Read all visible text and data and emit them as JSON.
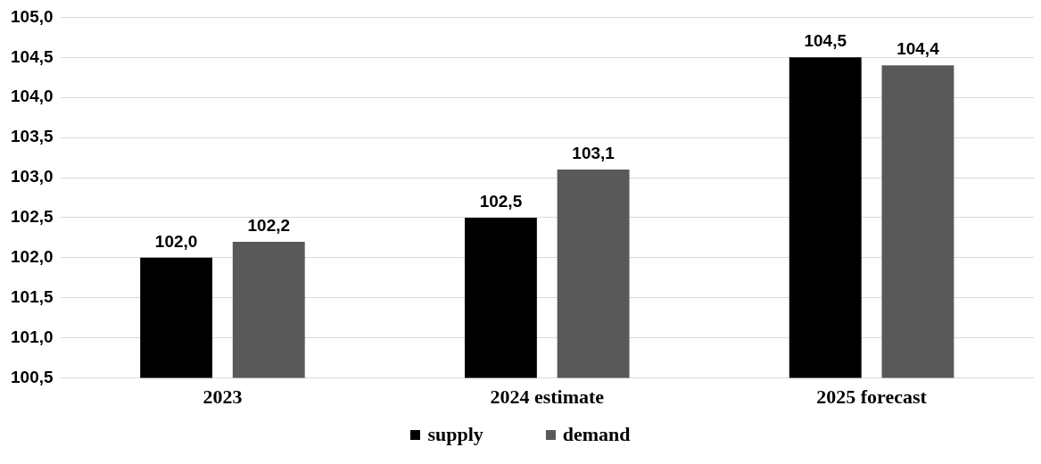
{
  "chart_data": {
    "type": "bar",
    "categories": [
      "2023",
      "2024 estimate",
      "2025 forecast"
    ],
    "series": [
      {
        "name": "supply",
        "color": "#000000",
        "values": [
          102.0,
          102.5,
          104.5
        ],
        "value_labels": [
          "102,0",
          "102,5",
          "104,5"
        ]
      },
      {
        "name": "demand",
        "color": "#595959",
        "values": [
          102.2,
          103.1,
          104.4
        ],
        "value_labels": [
          "102,2",
          "103,1",
          "104,4"
        ]
      }
    ],
    "ylim": [
      100.5,
      105.0
    ],
    "yticks": [
      {
        "value": 100.5,
        "label": "100,5"
      },
      {
        "value": 101.0,
        "label": "101,0"
      },
      {
        "value": 101.5,
        "label": "101,5"
      },
      {
        "value": 102.0,
        "label": "102,0"
      },
      {
        "value": 102.5,
        "label": "102,5"
      },
      {
        "value": 103.0,
        "label": "103,0"
      },
      {
        "value": 103.5,
        "label": "103,5"
      },
      {
        "value": 104.0,
        "label": "104,0"
      },
      {
        "value": 104.5,
        "label": "104,5"
      },
      {
        "value": 105.0,
        "label": "105,0"
      }
    ],
    "grid": "y",
    "legend": "bottom"
  }
}
